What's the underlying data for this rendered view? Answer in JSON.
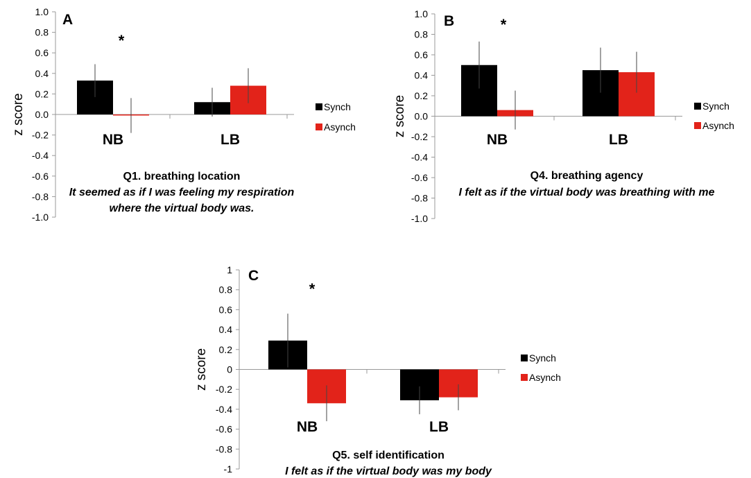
{
  "legend": [
    {
      "name": "Synch",
      "color": "#000000"
    },
    {
      "name": "Asynch",
      "color": "#e2231a"
    }
  ],
  "chart_data": [
    {
      "type": "bar",
      "panel_letter": "A",
      "categories": [
        "NB",
        "LB"
      ],
      "series": [
        {
          "name": "Synch",
          "values": [
            0.33,
            0.12
          ],
          "error": [
            0.16,
            0.14
          ]
        },
        {
          "name": "Asynch",
          "values": [
            -0.01,
            0.28
          ],
          "error": [
            0.17,
            0.17
          ]
        }
      ],
      "ylabel": "z score",
      "ylim": [
        -1.0,
        1.0
      ],
      "yticks": [
        "1.0",
        "0.8",
        "0.6",
        "0.4",
        "0.2",
        "0.0",
        "-0.2",
        "-0.4",
        "-0.6",
        "-0.8",
        "-1.0"
      ],
      "significance": "*",
      "title": "Q1. breathing location",
      "caption_lines": [
        "It seemed as if I was feeling my respiration",
        "where the virtual body was."
      ]
    },
    {
      "type": "bar",
      "panel_letter": "B",
      "categories": [
        "NB",
        "LB"
      ],
      "series": [
        {
          "name": "Synch",
          "values": [
            0.5,
            0.45
          ],
          "error": [
            0.23,
            0.22
          ]
        },
        {
          "name": "Asynch",
          "values": [
            0.06,
            0.43
          ],
          "error": [
            0.19,
            0.2
          ]
        }
      ],
      "ylabel": "z score",
      "ylim": [
        -1.0,
        1.0
      ],
      "yticks": [
        "1.0",
        "0.8",
        "0.6",
        "0.4",
        "0.2",
        "0.0",
        "-0.2",
        "-0.4",
        "-0.6",
        "-0.8",
        "-1.0"
      ],
      "significance": "*",
      "title": "Q4. breathing agency",
      "caption_lines": [
        "I felt as if the virtual body was breathing with me"
      ]
    },
    {
      "type": "bar",
      "panel_letter": "C",
      "categories": [
        "NB",
        "LB"
      ],
      "series": [
        {
          "name": "Synch",
          "values": [
            0.29,
            -0.31
          ],
          "error": [
            0.27,
            0.14
          ]
        },
        {
          "name": "Asynch",
          "values": [
            -0.34,
            -0.28
          ],
          "error": [
            0.18,
            0.13
          ]
        }
      ],
      "ylabel": "z score",
      "ylim": [
        -1,
        1
      ],
      "yticks": [
        "1",
        "0.8",
        "0.6",
        "0.4",
        "0.2",
        "0",
        "-0.2",
        "-0.4",
        "-0.6",
        "-0.8",
        "-1"
      ],
      "significance": "*",
      "title": "Q5. self identification",
      "caption_lines": [
        "I felt as if the virtual body was my body"
      ]
    }
  ]
}
